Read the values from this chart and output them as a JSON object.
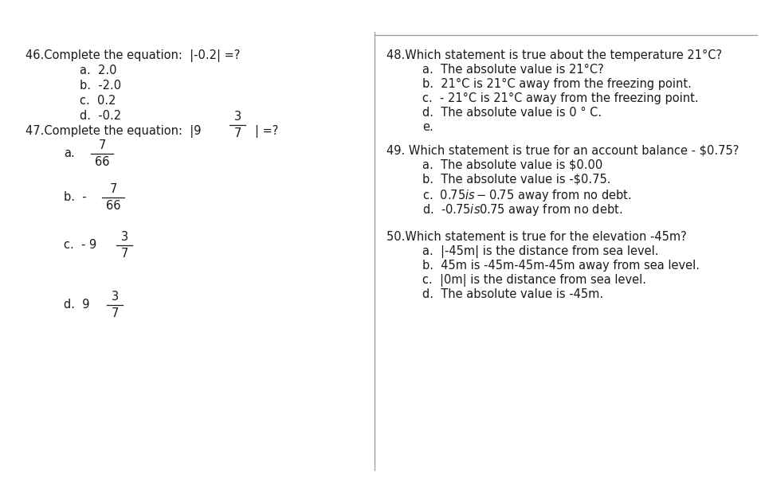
{
  "bg_color": "#ffffff",
  "font_size": 10.5,
  "left": {
    "q46_q": "46.Complete the equation:  |-0.2| =?",
    "q46_opts": [
      "a.  2.0",
      "b.  -2.0",
      "c.  0.2",
      "d.  -0.2"
    ],
    "q47_prefix": "47.Complete the equation:  |9",
    "q47_suffix": "| =?",
    "q47_fn": "3",
    "q47_fd": "7",
    "opts47": [
      {
        "label": "a.",
        "pre": "",
        "fn": "7",
        "fd": "66"
      },
      {
        "label": "b.",
        "pre": " - ",
        "fn": "7",
        "fd": "66"
      },
      {
        "label": "c.",
        "pre": " - 9 ",
        "fn": "3",
        "fd": "7"
      },
      {
        "label": "d.",
        "pre": " 9 ",
        "fn": "3",
        "fd": "7"
      }
    ]
  },
  "right": {
    "q48_q": "48.Which statement is true about the temperature 21°C?",
    "q48_opts": [
      "a.  The absolute value is 21°C?",
      "b.  21°C is 21°C away from the freezing point.",
      "c.  - 21°C is 21°C away from the freezing point.",
      "d.  The absolute value is 0 ° C.",
      "e."
    ],
    "q49_q": "49. Which statement is true for an account balance - $0.75?",
    "q49_opts": [
      "a.  The absolute value is $0.00",
      "b.  The absolute value is -$0.75.",
      "c.  $0.75 is -$0.75 away from no debt.",
      "d.  -$0.75 is $0.75 away from no debt."
    ],
    "q50_q": "50.Which statement is true for the elevation -45m?",
    "q50_opts": [
      "a.  |-45m| is the distance from sea level.",
      "b.  45m is -45m-45m-45m away from sea level.",
      "c.  |0m| is the distance from sea level.",
      "d.  The absolute value is -45m."
    ]
  },
  "divider_color": "#999999",
  "text_color": "#1a1a1a"
}
